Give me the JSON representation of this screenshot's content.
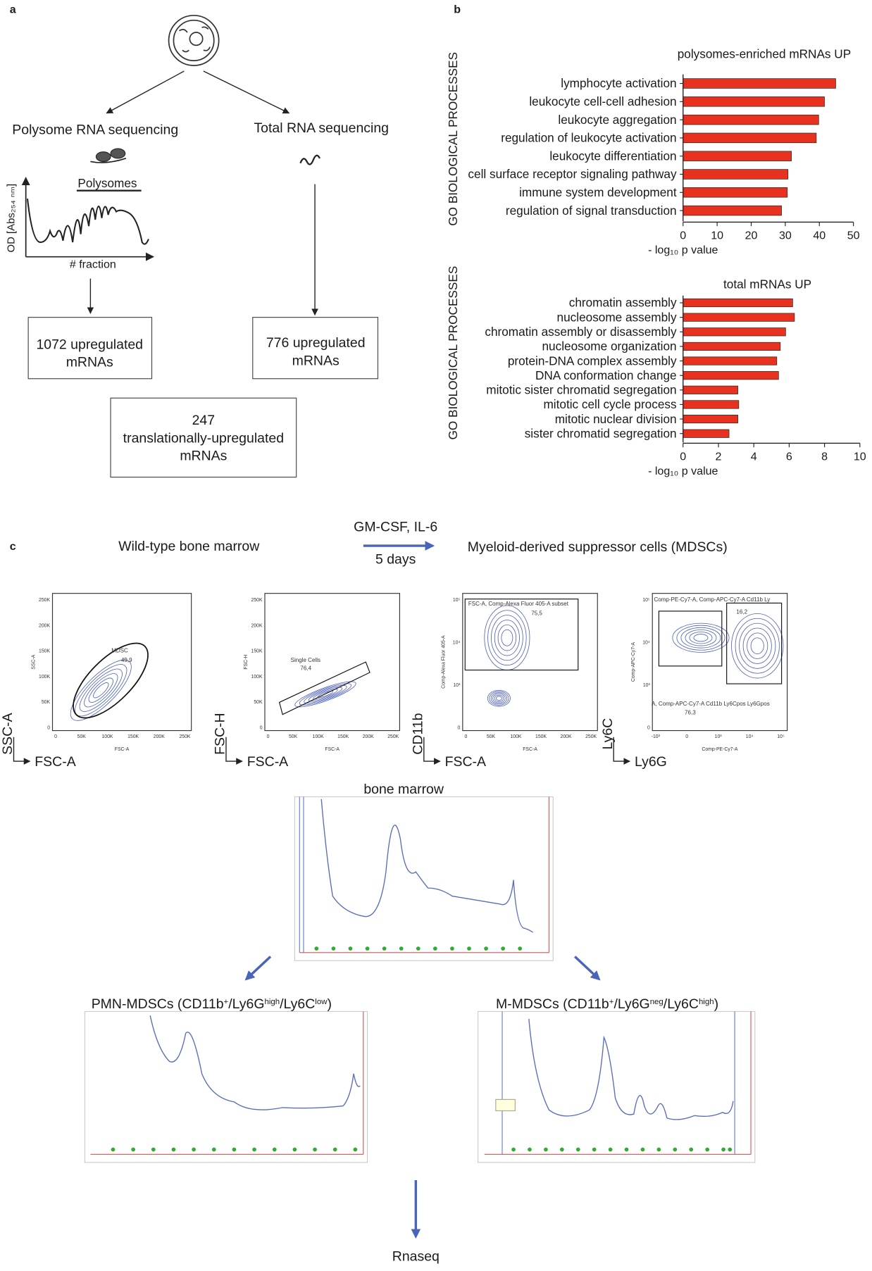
{
  "panel_a": {
    "letter": "a",
    "left_method": "Polysome RNA sequencing",
    "right_method": "Total RNA sequencing",
    "trace_band": "Polysomes",
    "trace_ylabel": "OD [Abs₂₅₄ ₙₘ]",
    "trace_xlabel": "# fraction",
    "left_box": [
      "1072 upregulated",
      "mRNAs"
    ],
    "right_box": [
      "776 upregulated",
      "mRNAs"
    ],
    "overlap_box": [
      "247",
      "translationally-upregulated",
      "mRNAs"
    ]
  },
  "panel_b": {
    "letter": "b"
  },
  "chart_data": [
    {
      "type": "bar",
      "orientation": "horizontal",
      "title": "polysomes-enriched mRNAs UP",
      "ylabel": "GO BIOLOGICAL PROCESSES",
      "xlabel": "- log₁₀ p value",
      "color": "#e8321f",
      "categories": [
        "lymphocyte activation",
        "leukocyte cell-cell adhesion",
        "leukocyte aggregation",
        "regulation of leukocyte activation",
        "leukocyte differentiation",
        "cell surface receptor signaling pathway",
        "immune system development",
        "regulation of signal transduction"
      ],
      "values": [
        44.8,
        41.5,
        39.8,
        39.1,
        31.8,
        30.8,
        30.6,
        28.9
      ],
      "xlim": [
        0,
        50
      ],
      "xticks": [
        0,
        10,
        20,
        30,
        40,
        50
      ]
    },
    {
      "type": "bar",
      "orientation": "horizontal",
      "title": "total mRNAs UP",
      "ylabel": "GO BIOLOGICAL PROCESSES",
      "xlabel": "- log₁₀ p value",
      "color": "#e8321f",
      "categories": [
        "chromatin assembly",
        "nucleosome assembly",
        "chromatin assembly or disassembly",
        "nucleosome organization",
        "protein-DNA complex assembly",
        "DNA conformation change",
        "mitotic sister chromatid segregation",
        "mitotic cell cycle process",
        "mitotic nuclear division",
        "sister chromatid segregation"
      ],
      "values": [
        6.2,
        6.3,
        5.8,
        5.5,
        5.3,
        5.4,
        3.1,
        3.15,
        3.1,
        2.6
      ],
      "xlim": [
        0,
        10
      ],
      "xticks": [
        0,
        2,
        4,
        6,
        8,
        10
      ]
    }
  ],
  "panel_c": {
    "letter": "c",
    "source": "Wild-type bone marrow",
    "treatment": "GM-CSF, IL-6",
    "duration": "5 days",
    "product": "Myeloid-derived suppressor cells (MDSCs)",
    "flow_plots": [
      {
        "y_label": "SSC-A",
        "x_label": "FSC-A",
        "y_title": "SSC-A",
        "x_title": "FSC-A",
        "x_ticks": [
          "0",
          "50K",
          "100K",
          "150K",
          "200K",
          "250K"
        ],
        "y_ticks": [
          "0",
          "50K",
          "100K",
          "150K",
          "200K",
          "250K"
        ],
        "gates": [
          {
            "name": "MDSC",
            "value": "49,9"
          }
        ]
      },
      {
        "y_label": "FSC-H",
        "x_label": "FSC-A",
        "y_title": "FSC-H",
        "x_title": "FSC-A",
        "x_ticks": [
          "0",
          "50K",
          "100K",
          "150K",
          "200K",
          "250K"
        ],
        "y_ticks": [
          "0",
          "50K",
          "100K",
          "150K",
          "200K",
          "250K"
        ],
        "gates": [
          {
            "name": "Single Cells",
            "value": "76,4"
          }
        ]
      },
      {
        "y_label": "CD11b",
        "x_label": "FSC-A",
        "y_title": "Comp-Alexa Fluor 405-A",
        "x_title": "FSC-A",
        "x_ticks": [
          "0",
          "50K",
          "100K",
          "150K",
          "200K",
          "250K"
        ],
        "y_ticks": [
          "0",
          "10³",
          "10⁴",
          "10⁵"
        ],
        "gates": [
          {
            "name": "FSC-A, Comp-Alexa Fluor 405-A subset",
            "value": "75,5"
          }
        ]
      },
      {
        "y_label": "Ly6C",
        "x_label": "Ly6G",
        "y_title": "Comp-APC-Cy7-A",
        "x_title": "Comp-PE-Cy7-A",
        "x_ticks": [
          "-10³",
          "0",
          "10³",
          "10⁴",
          "10⁵"
        ],
        "y_ticks": [
          "0",
          "10³",
          "10⁴",
          "10⁵"
        ],
        "gates": [
          {
            "name": "Comp-PE-Cy7-A, Comp-APC-Cy7-A Cd11b Ly",
            "value": "16,2"
          },
          {
            "name": "A, Comp-APC-Cy7-A Cd11b Ly6Cpos Ly6Gpos",
            "value": "76,3"
          }
        ]
      }
    ],
    "profile_source": "bone marrow",
    "pmn_title": [
      "PMN-MDSCs (CD11b",
      "+",
      "/Ly6G",
      "high",
      "/Ly6C",
      "low",
      ")"
    ],
    "m_title": [
      "M-MDSCs (CD11b",
      "+",
      "/Ly6G",
      "neg",
      "/Ly6C",
      "high",
      ")"
    ],
    "final_step": "Rnaseq"
  }
}
